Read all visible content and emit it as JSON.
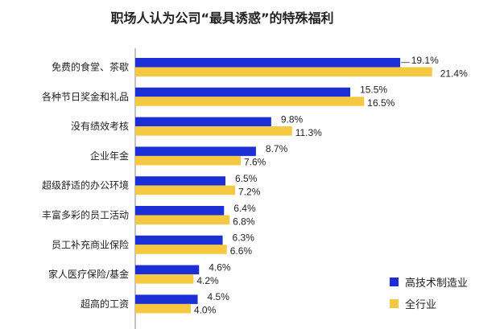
{
  "chart_data": {
    "type": "bar",
    "orientation": "horizontal",
    "title": "职场人认为公司“最具诱惑”的特殊福利",
    "categories": [
      "免费的食堂、茶歇",
      "各种节日奖金和礼品",
      "没有绩效考核",
      "企业年金",
      "超级舒适的办公环境",
      "丰富多彩的员工活动",
      "员工补充商业保险",
      "家人医疗保险/基金",
      "超高的工资"
    ],
    "series": [
      {
        "name": "高技术制造业",
        "values": [
          19.1,
          15.5,
          9.8,
          8.7,
          6.5,
          6.4,
          6.3,
          4.6,
          4.5
        ],
        "labels": [
          "19.1%",
          "15.5%",
          "9.8%",
          "8.7%",
          "6.5%",
          "6.4%",
          "6.3%",
          "4.6%",
          "4.5%"
        ]
      },
      {
        "name": "全行业",
        "values": [
          21.4,
          16.5,
          11.3,
          7.6,
          7.2,
          6.8,
          6.6,
          4.2,
          4.0
        ],
        "labels": [
          "21.4%",
          "16.5%",
          "11.3%",
          "7.6%",
          "7.2%",
          "6.8%",
          "6.6%",
          "4.2%",
          "4.0%"
        ]
      }
    ],
    "colors": {
      "high_tech": "#1c2fd6",
      "all": "#f5c842",
      "axis": "#888888"
    },
    "legend_position": "bottom-right",
    "grid": false
  }
}
